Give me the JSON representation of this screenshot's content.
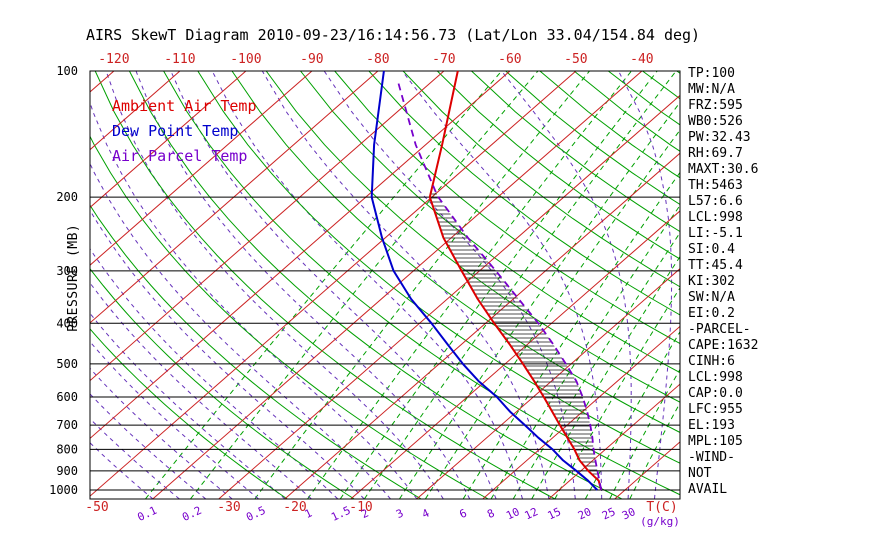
{
  "title": "AIRS SkewT Diagram 2010-09-23/16:14:56.73 (Lat/Lon 33.04/154.84 deg)",
  "colors": {
    "ambient": "#dd0000",
    "dew_point": "#0000cc",
    "parcel": "#7700cc",
    "isotherm": "#cc2222",
    "adiabat": "#00a000",
    "moist_adiabat": "#6633bb",
    "mixing": "#00a000",
    "mixing_label": "#7700cc",
    "hatch": "#222222"
  },
  "legend": {
    "items": [
      {
        "label": "Ambient Air Temp",
        "color_key": "ambient"
      },
      {
        "label": "Dew Point Temp",
        "color_key": "dew_point"
      },
      {
        "label": "Air Parcel Temp",
        "color_key": "parcel"
      }
    ]
  },
  "axes": {
    "y_label": "PRESSURE (MB)",
    "pressure_ticks": [
      100,
      200,
      300,
      400,
      500,
      600,
      700,
      800,
      900,
      1000
    ],
    "top_temp_labels": [
      -120,
      -110,
      -100,
      -90,
      -80,
      -70,
      -60,
      -50,
      -40
    ],
    "bottom_temp_labels": [
      -50,
      -30,
      -20,
      -10
    ],
    "temp_unit_label": "T(C)",
    "mixing_unit_label": "(g/kg)"
  },
  "stats_panel": {
    "lines": [
      "TP:100",
      "MW:N/A",
      "FRZ:595",
      "WB0:526",
      "PW:32.43",
      "RH:69.7",
      "MAXT:30.6",
      "TH:5463",
      "L57:6.6",
      "LCL:998",
      "LI:-5.1",
      "SI:0.4",
      "TT:45.4",
      "KI:302",
      "SW:N/A",
      "EI:0.2",
      "-PARCEL-",
      "CAPE:1632",
      "CINH:6",
      "LCL:998",
      "CAP:0.0",
      "LFC:955",
      "EL:193",
      "MPL:105",
      "-WIND-",
      "NOT",
      "AVAIL"
    ]
  },
  "chart_data": {
    "type": "line",
    "title": "AIRS SkewT Diagram 2010-09-23/16:14:56.73 (Lat/Lon 33.04/154.84 deg)",
    "xlabel": "T(C)",
    "ylabel": "PRESSURE (MB)",
    "x_axis": {
      "temp_c_at_1000mb_range": [
        -51,
        38
      ],
      "skewed": true
    },
    "y_axis": {
      "scale": "log",
      "range_mb": [
        100,
        1050
      ],
      "ticks_mb": [
        100,
        200,
        300,
        400,
        500,
        600,
        700,
        800,
        900,
        1000
      ]
    },
    "grid": {
      "isotherms_every_c": 10,
      "dry_adiabats_every_k": 10
    },
    "mixing_ratio_lines_g_kg": [
      0.1,
      0.2,
      0.5,
      1,
      1.5,
      2,
      3,
      4,
      6,
      8,
      10,
      12,
      15,
      20,
      25,
      30
    ],
    "legend_position": "upper-left-inside",
    "series": [
      {
        "name": "Ambient Air Temp",
        "color": "#dd0000",
        "style": "solid",
        "points_p_t": [
          [
            1000,
            26.4
          ],
          [
            950,
            24.4
          ],
          [
            900,
            21.1
          ],
          [
            850,
            18.0
          ],
          [
            800,
            15.3
          ],
          [
            750,
            12.2
          ],
          [
            700,
            8.9
          ],
          [
            650,
            5.4
          ],
          [
            600,
            1.6
          ],
          [
            550,
            -2.6
          ],
          [
            500,
            -7.3
          ],
          [
            450,
            -12.6
          ],
          [
            400,
            -18.7
          ],
          [
            350,
            -25.4
          ],
          [
            300,
            -32.7
          ],
          [
            250,
            -41.2
          ],
          [
            200,
            -50.3
          ],
          [
            150,
            -57.5
          ],
          [
            100,
            -67.9
          ]
        ]
      },
      {
        "name": "Dew Point Temp",
        "color": "#0000cc",
        "style": "solid",
        "points_p_t": [
          [
            1000,
            25.8
          ],
          [
            950,
            22.8
          ],
          [
            900,
            19.3
          ],
          [
            850,
            15.5
          ],
          [
            800,
            12.0
          ],
          [
            750,
            7.8
          ],
          [
            700,
            3.6
          ],
          [
            650,
            -1.0
          ],
          [
            600,
            -5.5
          ],
          [
            550,
            -11.0
          ],
          [
            500,
            -16.4
          ],
          [
            450,
            -22.0
          ],
          [
            400,
            -28.2
          ],
          [
            350,
            -35.5
          ],
          [
            300,
            -43.0
          ],
          [
            250,
            -50.5
          ],
          [
            200,
            -59.1
          ],
          [
            150,
            -67.8
          ],
          [
            100,
            -79.1
          ]
        ]
      },
      {
        "name": "Air Parcel Temp",
        "color": "#7700cc",
        "style": "dashed",
        "points_p_t": [
          [
            1000,
            26.4
          ],
          [
            950,
            24.5
          ],
          [
            900,
            22.5
          ],
          [
            850,
            20.4
          ],
          [
            800,
            18.2
          ],
          [
            750,
            16.0
          ],
          [
            700,
            13.5
          ],
          [
            650,
            10.7
          ],
          [
            600,
            7.5
          ],
          [
            550,
            3.8
          ],
          [
            500,
            -0.8
          ],
          [
            450,
            -6.0
          ],
          [
            400,
            -12.0
          ],
          [
            350,
            -19.2
          ],
          [
            300,
            -27.5
          ],
          [
            250,
            -37.5
          ],
          [
            200,
            -49.0
          ],
          [
            193,
            -50.6
          ],
          [
            150,
            -61.5
          ],
          [
            105,
            -75.5
          ]
        ]
      }
    ],
    "cape_area": {
      "between": [
        "Ambient Air Temp",
        "Air Parcel Temp"
      ],
      "pressure_range_mb": [
        950,
        193
      ],
      "hatch": "horizontal"
    }
  }
}
